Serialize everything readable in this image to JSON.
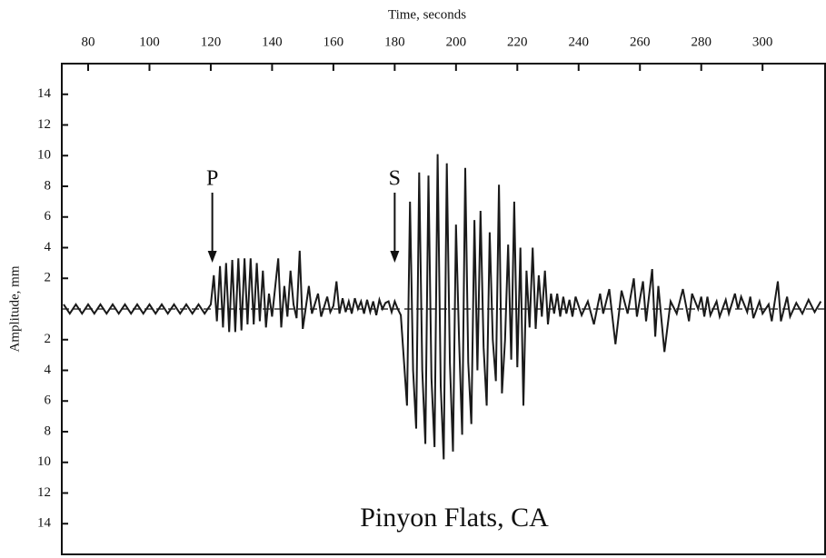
{
  "chart_data": {
    "type": "line",
    "title": "Time, seconds",
    "y_label": "Amplitude, mm",
    "caption": "Pinyon Flats, CA",
    "annotations": [
      {
        "text": "P",
        "x": 120.5
      },
      {
        "text": "S",
        "x": 180
      }
    ],
    "xlim": [
      71.4,
      320.4
    ],
    "xticks": [
      80,
      100,
      120,
      140,
      160,
      180,
      200,
      220,
      240,
      260,
      280,
      300
    ],
    "ylim": [
      -16,
      16
    ],
    "yticks": [
      {
        "value": -14,
        "label": "14"
      },
      {
        "value": -12,
        "label": "12"
      },
      {
        "value": -10,
        "label": "10"
      },
      {
        "value": -8,
        "label": "8"
      },
      {
        "value": -6,
        "label": "6"
      },
      {
        "value": -4,
        "label": "4"
      },
      {
        "value": -2,
        "label": "2"
      },
      2,
      4,
      6,
      8,
      10,
      12,
      14
    ],
    "color": "#1a1a1a",
    "zero_line": true,
    "x": [
      72,
      74,
      76,
      78,
      80,
      82,
      84,
      86,
      88,
      90,
      92,
      94,
      96,
      98,
      100,
      102,
      104,
      106,
      108,
      110,
      112,
      114,
      116,
      118,
      120,
      121,
      122,
      123,
      124,
      125,
      126,
      127,
      128,
      129,
      130,
      131,
      132,
      133,
      134,
      135,
      136,
      137,
      138,
      139,
      140,
      142,
      143,
      144,
      145,
      146,
      147,
      148,
      149,
      150,
      152,
      153,
      155,
      156,
      158,
      159,
      160,
      161,
      162,
      163,
      164,
      165,
      166,
      167,
      168,
      169,
      170,
      171,
      172,
      173,
      174,
      175,
      176,
      177,
      178,
      179,
      180,
      181,
      182,
      184,
      185,
      186,
      187,
      188,
      189,
      190,
      191,
      192,
      193,
      194,
      195,
      196,
      197,
      198,
      199,
      200,
      201,
      202,
      203,
      204,
      205,
      206,
      207,
      208,
      209,
      210,
      211,
      212,
      213,
      214,
      215,
      216,
      217,
      218,
      219,
      220,
      221,
      222,
      223,
      224,
      225,
      226,
      227,
      228,
      229,
      230,
      231,
      232,
      233,
      234,
      235,
      236,
      237,
      238,
      239,
      241,
      243,
      245,
      247,
      248,
      250,
      252,
      254,
      256,
      258,
      259,
      261,
      262,
      264,
      265,
      266,
      268,
      270,
      272,
      274,
      276,
      277,
      279,
      280,
      281,
      282,
      283,
      285,
      286,
      288,
      289,
      291,
      292,
      293,
      295,
      296,
      297,
      299,
      300,
      302,
      303,
      305,
      306,
      308,
      309,
      311,
      313,
      315,
      317,
      319
    ],
    "values": [
      0.3,
      -0.3,
      0.3,
      -0.3,
      0.3,
      -0.3,
      0.3,
      -0.3,
      0.3,
      -0.3,
      0.3,
      -0.3,
      0.3,
      -0.3,
      0.3,
      -0.3,
      0.3,
      -0.3,
      0.3,
      -0.3,
      0.3,
      -0.3,
      0.3,
      -0.3,
      0.3,
      2.2,
      -0.8,
      2.8,
      -1.2,
      3.0,
      -1.5,
      3.2,
      -1.5,
      3.3,
      -1.4,
      3.3,
      -1.0,
      3.3,
      -1.0,
      3.0,
      -0.8,
      2.5,
      -1.2,
      1.0,
      -0.5,
      3.3,
      -1.2,
      1.5,
      -0.5,
      2.5,
      0.3,
      -0.6,
      3.8,
      -1.3,
      1.5,
      -0.3,
      1.0,
      -0.5,
      0.8,
      -0.2,
      0.2,
      1.8,
      -0.3,
      0.7,
      -0.2,
      0.5,
      -0.3,
      0.7,
      0.0,
      0.5,
      -0.3,
      0.6,
      -0.2,
      0.5,
      -0.4,
      0.6,
      0.0,
      0.4,
      0.5,
      -0.2,
      0.5,
      0.0,
      -0.4,
      -6.3,
      7.0,
      -4.0,
      -7.8,
      8.9,
      -4.0,
      -8.8,
      8.7,
      -4.5,
      -9.0,
      10.1,
      -5.0,
      -9.8,
      9.5,
      -3.5,
      -9.3,
      5.5,
      -2.0,
      -8.2,
      9.2,
      -3.5,
      -7.5,
      5.8,
      -4.0,
      6.4,
      -2.5,
      -6.3,
      5.0,
      -2.0,
      -4.7,
      8.1,
      -5.5,
      -2.0,
      4.2,
      -3.3,
      7.0,
      -3.8,
      4.0,
      -6.3,
      2.5,
      -1.2,
      4.0,
      -1.3,
      2.2,
      -0.5,
      2.5,
      -1.0,
      1.0,
      -0.3,
      1.0,
      -0.5,
      0.8,
      -0.3,
      0.6,
      -0.5,
      0.8,
      -0.4,
      0.5,
      -1.0,
      1.0,
      -0.3,
      1.3,
      -2.3,
      1.2,
      -0.3,
      2.0,
      -0.5,
      1.8,
      -0.8,
      2.6,
      -1.8,
      1.5,
      -2.8,
      0.5,
      -0.3,
      1.3,
      -0.8,
      1.0,
      0.0,
      0.8,
      -0.5,
      0.8,
      -0.4,
      0.5,
      -0.5,
      0.6,
      -0.3,
      1.0,
      0.0,
      0.8,
      -0.2,
      0.8,
      -0.6,
      0.5,
      -0.3,
      0.3,
      -0.8,
      1.8,
      -0.8,
      0.8,
      -0.5,
      0.4,
      -0.3,
      0.6,
      -0.2,
      0.5
    ]
  }
}
